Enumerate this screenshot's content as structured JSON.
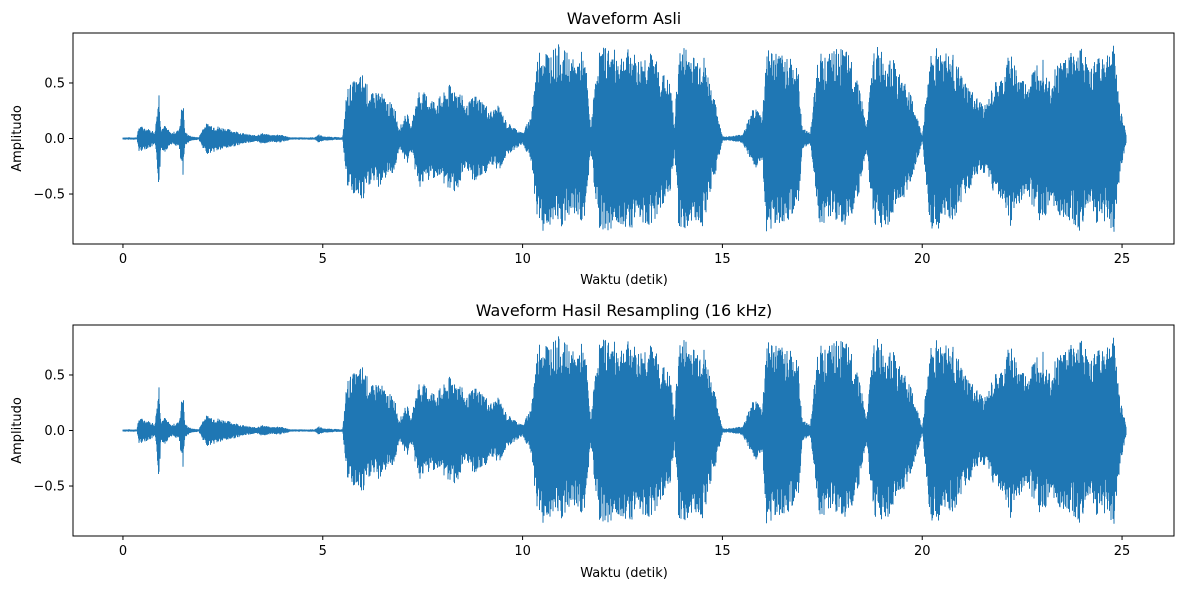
{
  "figure": {
    "background": "#ffffff",
    "line_color": "#1f77b4"
  },
  "chart_data": [
    {
      "type": "line",
      "title": "Waveform Asli",
      "xlabel": "Waktu (detik)",
      "ylabel": "Amplitudo",
      "xlim": [
        -1.25,
        26.3
      ],
      "ylim": [
        -0.95,
        0.95
      ],
      "xticks": [
        0,
        5,
        10,
        15,
        20,
        25
      ],
      "xtick_labels": [
        "0",
        "5",
        "10",
        "15",
        "20",
        "25"
      ],
      "yticks": [
        -0.5,
        0.0,
        0.5
      ],
      "ytick_labels": [
        "−0.5",
        "0.0",
        "0.5"
      ],
      "grid": false,
      "series": [
        {
          "envelope": {
            "time": [
              0,
              0.35,
              0.4,
              0.55,
              0.7,
              0.8,
              0.9,
              0.95,
              1.05,
              1.2,
              1.4,
              1.5,
              1.55,
              1.7,
              1.9,
              2.0,
              2.1,
              2.3,
              2.5,
              2.7,
              2.9,
              3.1,
              3.3,
              3.5,
              3.7,
              3.9,
              4.1,
              4.2,
              4.4,
              4.8,
              4.9,
              5.0,
              5.5,
              5.6,
              5.7,
              5.9,
              6.0,
              6.2,
              6.4,
              6.6,
              6.8,
              6.9,
              7.0,
              7.1,
              7.2,
              7.4,
              7.6,
              7.8,
              8.0,
              8.2,
              8.4,
              8.6,
              8.8,
              9.0,
              9.2,
              9.4,
              9.6,
              9.8,
              10.0,
              10.2,
              10.4,
              10.5,
              10.7,
              10.9,
              11.1,
              11.3,
              11.5,
              11.6,
              11.7,
              11.9,
              12.1,
              12.3,
              12.5,
              12.7,
              12.9,
              13.1,
              13.3,
              13.5,
              13.7,
              13.8,
              13.9,
              14.1,
              14.3,
              14.5,
              14.7,
              14.9,
              15.0,
              15.2,
              15.5,
              15.8,
              16.0,
              16.1,
              16.3,
              16.5,
              16.7,
              16.9,
              17.0,
              17.2,
              17.4,
              17.6,
              17.8,
              18.0,
              18.2,
              18.4,
              18.6,
              18.8,
              19.0,
              19.2,
              19.4,
              19.6,
              19.8,
              20.0,
              20.2,
              20.4,
              20.6,
              20.8,
              21.0,
              21.2,
              21.4,
              21.6,
              21.8,
              22.0,
              22.2,
              22.4,
              22.6,
              22.8,
              23.0,
              23.2,
              23.4,
              23.6,
              23.8,
              24.0,
              24.2,
              24.4,
              24.6,
              24.8,
              24.95,
              25.1
            ],
            "amp": [
              0.01,
              0.01,
              0.12,
              0.1,
              0.08,
              0.06,
              0.45,
              0.1,
              0.12,
              0.05,
              0.08,
              0.38,
              0.06,
              0.02,
              0.01,
              0.1,
              0.14,
              0.12,
              0.1,
              0.08,
              0.06,
              0.04,
              0.03,
              0.05,
              0.03,
              0.04,
              0.02,
              0.01,
              0.01,
              0.01,
              0.04,
              0.02,
              0.01,
              0.45,
              0.5,
              0.55,
              0.6,
              0.4,
              0.45,
              0.35,
              0.3,
              0.1,
              0.15,
              0.25,
              0.1,
              0.45,
              0.4,
              0.35,
              0.4,
              0.5,
              0.45,
              0.3,
              0.4,
              0.35,
              0.25,
              0.3,
              0.15,
              0.1,
              0.05,
              0.2,
              0.82,
              0.85,
              0.8,
              0.85,
              0.78,
              0.7,
              0.8,
              0.6,
              0.1,
              0.8,
              0.85,
              0.8,
              0.78,
              0.82,
              0.72,
              0.8,
              0.75,
              0.6,
              0.5,
              0.1,
              0.8,
              0.85,
              0.75,
              0.8,
              0.5,
              0.2,
              0.02,
              0.02,
              0.04,
              0.3,
              0.2,
              0.85,
              0.8,
              0.75,
              0.78,
              0.6,
              0.1,
              0.05,
              0.8,
              0.75,
              0.8,
              0.82,
              0.75,
              0.55,
              0.1,
              0.85,
              0.8,
              0.78,
              0.6,
              0.5,
              0.3,
              0.02,
              0.8,
              0.85,
              0.8,
              0.75,
              0.55,
              0.45,
              0.35,
              0.3,
              0.5,
              0.55,
              0.8,
              0.6,
              0.5,
              0.65,
              0.8,
              0.55,
              0.7,
              0.78,
              0.8,
              0.85,
              0.6,
              0.8,
              0.78,
              0.85,
              0.3,
              0.05
            ]
          }
        }
      ]
    },
    {
      "type": "line",
      "title": "Waveform Hasil Resampling (16 kHz)",
      "xlabel": "Waktu (detik)",
      "ylabel": "Amplitudo",
      "xlim": [
        -1.25,
        26.3
      ],
      "ylim": [
        -0.95,
        0.95
      ],
      "xticks": [
        0,
        5,
        10,
        15,
        20,
        25
      ],
      "xtick_labels": [
        "0",
        "5",
        "10",
        "15",
        "20",
        "25"
      ],
      "yticks": [
        -0.5,
        0.0,
        0.5
      ],
      "ytick_labels": [
        "−0.5",
        "0.0",
        "0.5"
      ],
      "grid": false,
      "series": [
        {
          "envelope": {
            "time": [
              0,
              0.35,
              0.4,
              0.55,
              0.7,
              0.8,
              0.9,
              0.95,
              1.05,
              1.2,
              1.4,
              1.5,
              1.55,
              1.7,
              1.9,
              2.0,
              2.1,
              2.3,
              2.5,
              2.7,
              2.9,
              3.1,
              3.3,
              3.5,
              3.7,
              3.9,
              4.1,
              4.2,
              4.4,
              4.8,
              4.9,
              5.0,
              5.5,
              5.6,
              5.7,
              5.9,
              6.0,
              6.2,
              6.4,
              6.6,
              6.8,
              6.9,
              7.0,
              7.1,
              7.2,
              7.4,
              7.6,
              7.8,
              8.0,
              8.2,
              8.4,
              8.6,
              8.8,
              9.0,
              9.2,
              9.4,
              9.6,
              9.8,
              10.0,
              10.2,
              10.4,
              10.5,
              10.7,
              10.9,
              11.1,
              11.3,
              11.5,
              11.6,
              11.7,
              11.9,
              12.1,
              12.3,
              12.5,
              12.7,
              12.9,
              13.1,
              13.3,
              13.5,
              13.7,
              13.8,
              13.9,
              14.1,
              14.3,
              14.5,
              14.7,
              14.9,
              15.0,
              15.2,
              15.5,
              15.8,
              16.0,
              16.1,
              16.3,
              16.5,
              16.7,
              16.9,
              17.0,
              17.2,
              17.4,
              17.6,
              17.8,
              18.0,
              18.2,
              18.4,
              18.6,
              18.8,
              19.0,
              19.2,
              19.4,
              19.6,
              19.8,
              20.0,
              20.2,
              20.4,
              20.6,
              20.8,
              21.0,
              21.2,
              21.4,
              21.6,
              21.8,
              22.0,
              22.2,
              22.4,
              22.6,
              22.8,
              23.0,
              23.2,
              23.4,
              23.6,
              23.8,
              24.0,
              24.2,
              24.4,
              24.6,
              24.8,
              24.95,
              25.1
            ],
            "amp": [
              0.01,
              0.01,
              0.12,
              0.1,
              0.08,
              0.06,
              0.45,
              0.1,
              0.12,
              0.05,
              0.08,
              0.38,
              0.06,
              0.02,
              0.01,
              0.1,
              0.14,
              0.12,
              0.1,
              0.08,
              0.06,
              0.04,
              0.03,
              0.05,
              0.03,
              0.04,
              0.02,
              0.01,
              0.01,
              0.01,
              0.04,
              0.02,
              0.01,
              0.45,
              0.5,
              0.55,
              0.6,
              0.4,
              0.45,
              0.35,
              0.3,
              0.1,
              0.15,
              0.25,
              0.1,
              0.45,
              0.4,
              0.35,
              0.4,
              0.5,
              0.45,
              0.3,
              0.4,
              0.35,
              0.25,
              0.3,
              0.15,
              0.1,
              0.05,
              0.2,
              0.82,
              0.85,
              0.8,
              0.85,
              0.78,
              0.7,
              0.8,
              0.6,
              0.1,
              0.8,
              0.85,
              0.8,
              0.78,
              0.82,
              0.72,
              0.8,
              0.75,
              0.6,
              0.5,
              0.1,
              0.8,
              0.85,
              0.75,
              0.8,
              0.5,
              0.2,
              0.02,
              0.02,
              0.04,
              0.3,
              0.2,
              0.85,
              0.8,
              0.75,
              0.78,
              0.6,
              0.1,
              0.05,
              0.8,
              0.75,
              0.8,
              0.82,
              0.75,
              0.55,
              0.1,
              0.85,
              0.8,
              0.78,
              0.6,
              0.5,
              0.3,
              0.02,
              0.8,
              0.85,
              0.8,
              0.75,
              0.55,
              0.45,
              0.35,
              0.3,
              0.5,
              0.55,
              0.8,
              0.6,
              0.5,
              0.65,
              0.8,
              0.55,
              0.7,
              0.78,
              0.8,
              0.85,
              0.6,
              0.8,
              0.78,
              0.85,
              0.3,
              0.05
            ]
          }
        }
      ]
    }
  ]
}
